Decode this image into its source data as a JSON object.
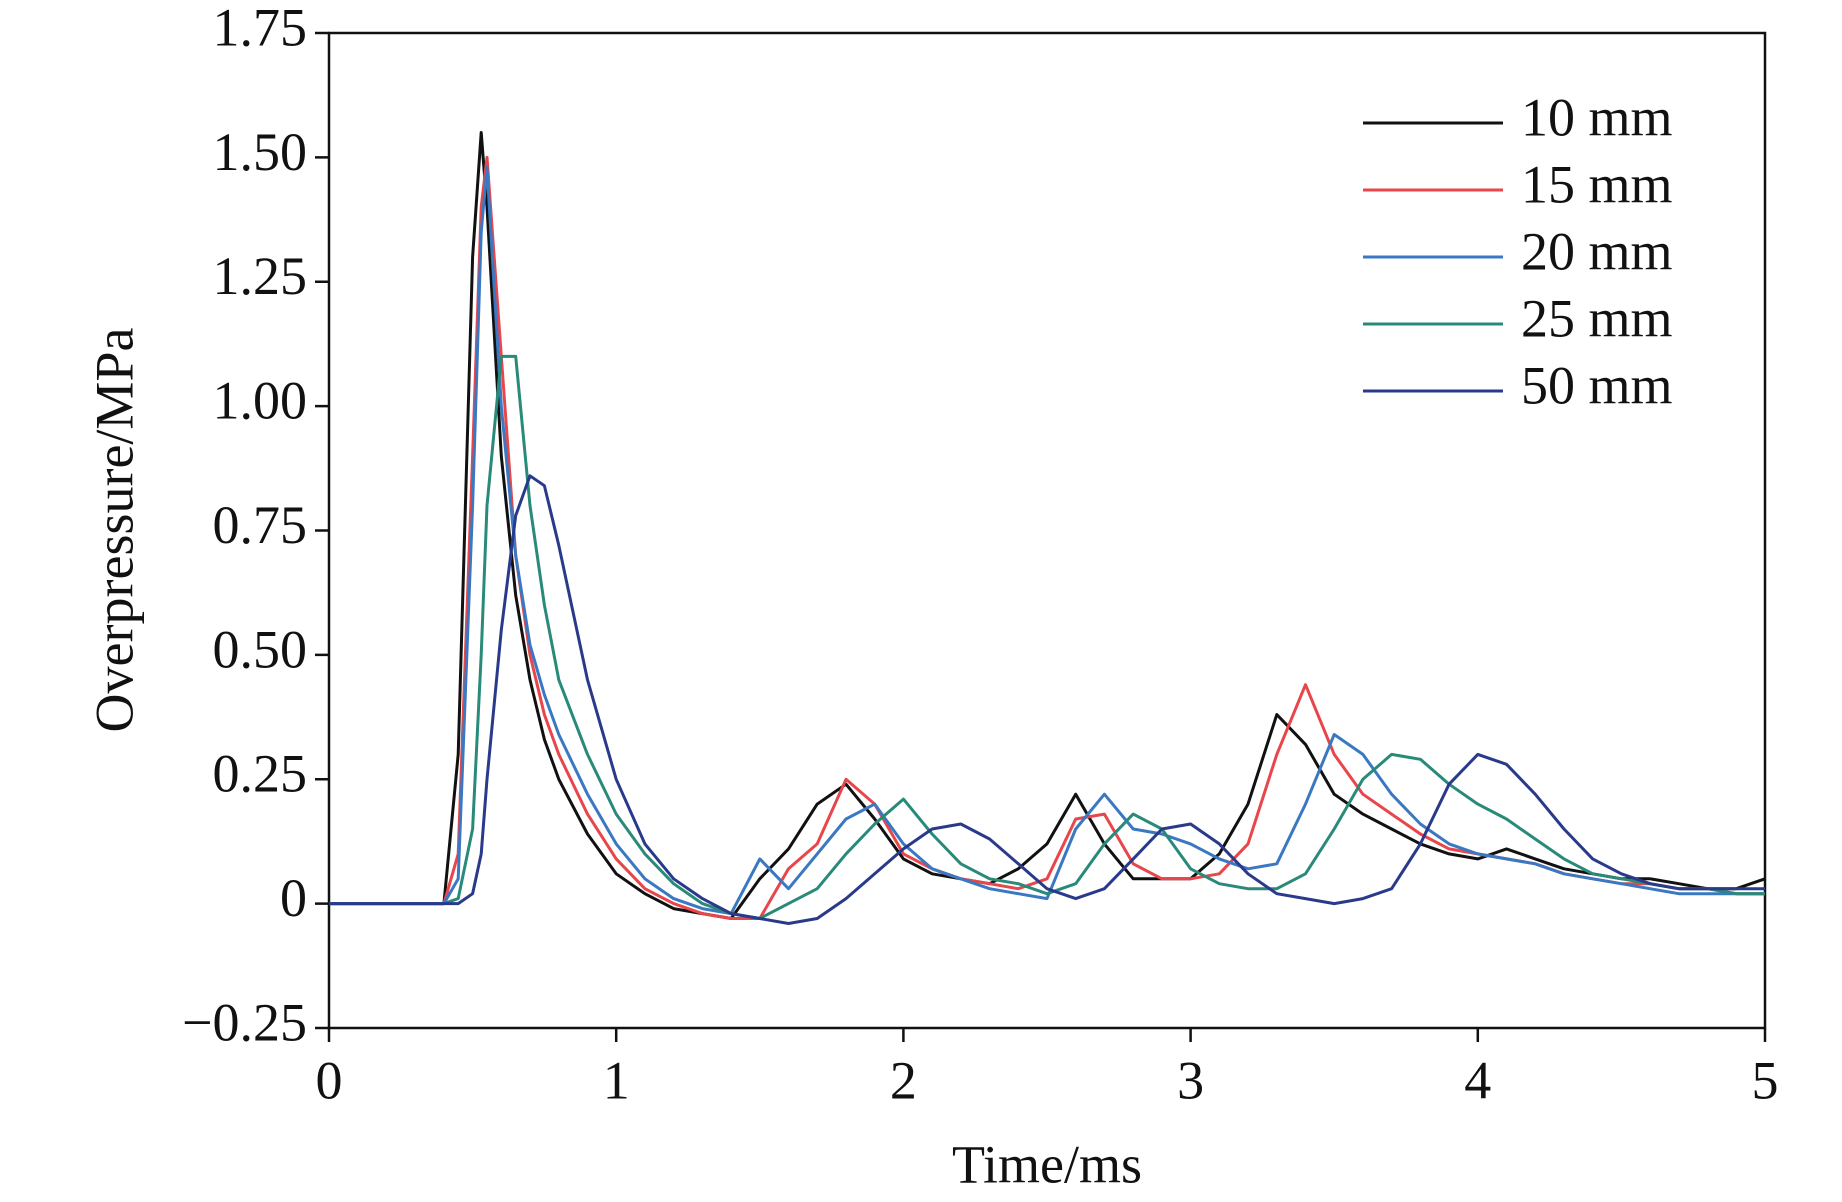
{
  "chart_data": {
    "type": "line",
    "x_label": "Time/ms",
    "y_label": "Overpressure/MPa",
    "xlim": [
      0,
      5
    ],
    "xticks": [
      0,
      1,
      2,
      3,
      4,
      5
    ],
    "ylim": [
      -0.25,
      1.75
    ],
    "yticks": [
      {
        "value": -0.25,
        "label": "−0.25"
      },
      0,
      0.25,
      {
        "value": 0.5,
        "label": "0.50"
      },
      0.75,
      {
        "value": 1,
        "label": "1.00"
      },
      1.25,
      {
        "value": 1.5,
        "label": "1.50"
      },
      1.75
    ],
    "legend": "upper right",
    "x": [
      0,
      0.2,
      0.4,
      0.45,
      0.5,
      0.53,
      0.55,
      0.6,
      0.65,
      0.7,
      0.75,
      0.8,
      0.9,
      1,
      1.1,
      1.2,
      1.3,
      1.4,
      1.5,
      1.6,
      1.7,
      1.8,
      1.9,
      2,
      2.1,
      2.2,
      2.3,
      2.4,
      2.5,
      2.6,
      2.7,
      2.8,
      2.9,
      3,
      3.1,
      3.2,
      3.3,
      3.4,
      3.5,
      3.6,
      3.7,
      3.8,
      3.9,
      4,
      4.1,
      4.2,
      4.3,
      4.4,
      4.5,
      4.6,
      4.7,
      4.8,
      4.9,
      5
    ],
    "series": [
      {
        "name": "10 mm",
        "color": "#111111",
        "values": [
          0,
          0,
          0,
          0.3,
          1.3,
          1.55,
          1.4,
          0.9,
          0.62,
          0.45,
          0.33,
          0.25,
          0.14,
          0.06,
          0.02,
          -0.01,
          -0.02,
          -0.03,
          0.05,
          0.11,
          0.2,
          0.24,
          0.17,
          0.09,
          0.06,
          0.05,
          0.04,
          0.07,
          0.12,
          0.22,
          0.12,
          0.05,
          0.05,
          0.05,
          0.1,
          0.2,
          0.38,
          0.32,
          0.22,
          0.18,
          0.15,
          0.12,
          0.1,
          0.09,
          0.11,
          0.09,
          0.07,
          0.06,
          0.05,
          0.05,
          0.04,
          0.03,
          0.03,
          0.05
        ]
      },
      {
        "name": "15 mm",
        "color": "#e8464b",
        "values": [
          0,
          0,
          0,
          0.1,
          0.9,
          1.4,
          1.5,
          1.1,
          0.7,
          0.5,
          0.38,
          0.3,
          0.18,
          0.09,
          0.03,
          0,
          -0.02,
          -0.03,
          -0.03,
          0.07,
          0.12,
          0.25,
          0.2,
          0.1,
          0.07,
          0.05,
          0.04,
          0.03,
          0.05,
          0.17,
          0.18,
          0.08,
          0.05,
          0.05,
          0.06,
          0.12,
          0.3,
          0.44,
          0.3,
          0.22,
          0.18,
          0.14,
          0.11,
          0.1,
          0.09,
          0.08,
          0.06,
          0.05,
          0.04,
          0.04,
          0.03,
          0.03,
          0.02,
          0.02
        ]
      },
      {
        "name": "20 mm",
        "color": "#3a78c2",
        "values": [
          0,
          0,
          0,
          0.05,
          0.8,
          1.35,
          1.48,
          1.0,
          0.7,
          0.52,
          0.42,
          0.34,
          0.22,
          0.12,
          0.05,
          0.01,
          -0.01,
          -0.02,
          0.09,
          0.03,
          0.1,
          0.17,
          0.2,
          0.12,
          0.07,
          0.05,
          0.03,
          0.02,
          0.01,
          0.15,
          0.22,
          0.15,
          0.14,
          0.12,
          0.09,
          0.07,
          0.08,
          0.2,
          0.34,
          0.3,
          0.22,
          0.16,
          0.12,
          0.1,
          0.09,
          0.08,
          0.06,
          0.05,
          0.04,
          0.03,
          0.02,
          0.02,
          0.02,
          0.02
        ]
      },
      {
        "name": "25 mm",
        "color": "#2a8a7a",
        "values": [
          0,
          0,
          0,
          0.01,
          0.15,
          0.5,
          0.8,
          1.1,
          1.1,
          0.8,
          0.6,
          0.45,
          0.3,
          0.18,
          0.1,
          0.04,
          0,
          -0.02,
          -0.03,
          0,
          0.03,
          0.1,
          0.16,
          0.21,
          0.14,
          0.08,
          0.05,
          0.04,
          0.02,
          0.04,
          0.12,
          0.18,
          0.15,
          0.07,
          0.04,
          0.03,
          0.03,
          0.06,
          0.15,
          0.25,
          0.3,
          0.29,
          0.24,
          0.2,
          0.17,
          0.13,
          0.09,
          0.06,
          0.05,
          0.04,
          0.03,
          0.03,
          0.02,
          0.02
        ]
      },
      {
        "name": "50 mm",
        "color": "#2a3a8a",
        "values": [
          0,
          0,
          0,
          0,
          0.02,
          0.1,
          0.25,
          0.55,
          0.78,
          0.86,
          0.84,
          0.72,
          0.45,
          0.25,
          0.12,
          0.05,
          0.01,
          -0.02,
          -0.03,
          -0.04,
          -0.03,
          0.01,
          0.06,
          0.11,
          0.15,
          0.16,
          0.13,
          0.08,
          0.03,
          0.01,
          0.03,
          0.09,
          0.15,
          0.16,
          0.12,
          0.06,
          0.02,
          0.01,
          0,
          0.01,
          0.03,
          0.12,
          0.24,
          0.3,
          0.28,
          0.22,
          0.15,
          0.09,
          0.06,
          0.04,
          0.03,
          0.03,
          0.03,
          0.03
        ]
      }
    ]
  }
}
